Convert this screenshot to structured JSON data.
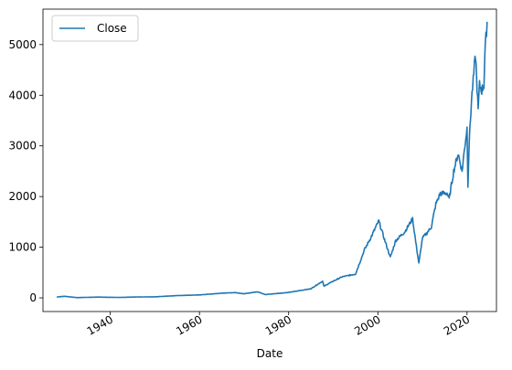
{
  "chart_data": {
    "type": "line",
    "title": "",
    "xlabel": "Date",
    "ylabel": "",
    "xlim": [
      1924.9,
      2026.6
    ],
    "ylim": [
      -270,
      5700
    ],
    "x_ticks": [
      {
        "value": 1940,
        "label": "1940"
      },
      {
        "value": 1960,
        "label": "1960"
      },
      {
        "value": 1980,
        "label": "1980"
      },
      {
        "value": 2000,
        "label": "2000"
      },
      {
        "value": 2020,
        "label": "2020"
      }
    ],
    "y_ticks": [
      {
        "value": 0,
        "label": "0"
      },
      {
        "value": 1000,
        "label": "1000"
      },
      {
        "value": 2000,
        "label": "2000"
      },
      {
        "value": 3000,
        "label": "3000"
      },
      {
        "value": 4000,
        "label": "4000"
      },
      {
        "value": 5000,
        "label": "5000"
      }
    ],
    "grid": false,
    "legend_position": "upper-left",
    "series": [
      {
        "name": "Close",
        "color": "#1f77b4",
        "x": [
          1928.0,
          1929.7,
          1932.5,
          1937.0,
          1942.0,
          1946.0,
          1950.0,
          1955.0,
          1960.0,
          1965.0,
          1968.0,
          1970.0,
          1973.0,
          1974.8,
          1980.0,
          1985.0,
          1987.6,
          1987.9,
          1990.0,
          1992.0,
          1995.0,
          1997.0,
          1998.5,
          2000.2,
          2001.5,
          2002.8,
          2004.0,
          2006.0,
          2007.8,
          2008.5,
          2009.2,
          2010.0,
          2011.0,
          2012.0,
          2013.0,
          2014.0,
          2015.5,
          2016.0,
          2017.0,
          2018.0,
          2018.9,
          2019.5,
          2020.0,
          2020.2,
          2020.5,
          2021.0,
          2021.9,
          2022.5,
          2022.8,
          2023.3,
          2023.8,
          2024.0,
          2024.5
        ],
        "y": [
          17,
          31,
          5,
          15,
          9,
          18,
          20,
          45,
          58,
          92,
          104,
          80,
          120,
          65,
          107,
          180,
          330,
          230,
          330,
          415,
          470,
          950,
          1200,
          1520,
          1150,
          800,
          1130,
          1300,
          1560,
          1100,
          680,
          1180,
          1280,
          1400,
          1850,
          2060,
          2070,
          1950,
          2500,
          2850,
          2500,
          3000,
          3350,
          2240,
          3100,
          3900,
          4800,
          3700,
          4200,
          4100,
          4200,
          4800,
          5450
        ]
      }
    ]
  }
}
